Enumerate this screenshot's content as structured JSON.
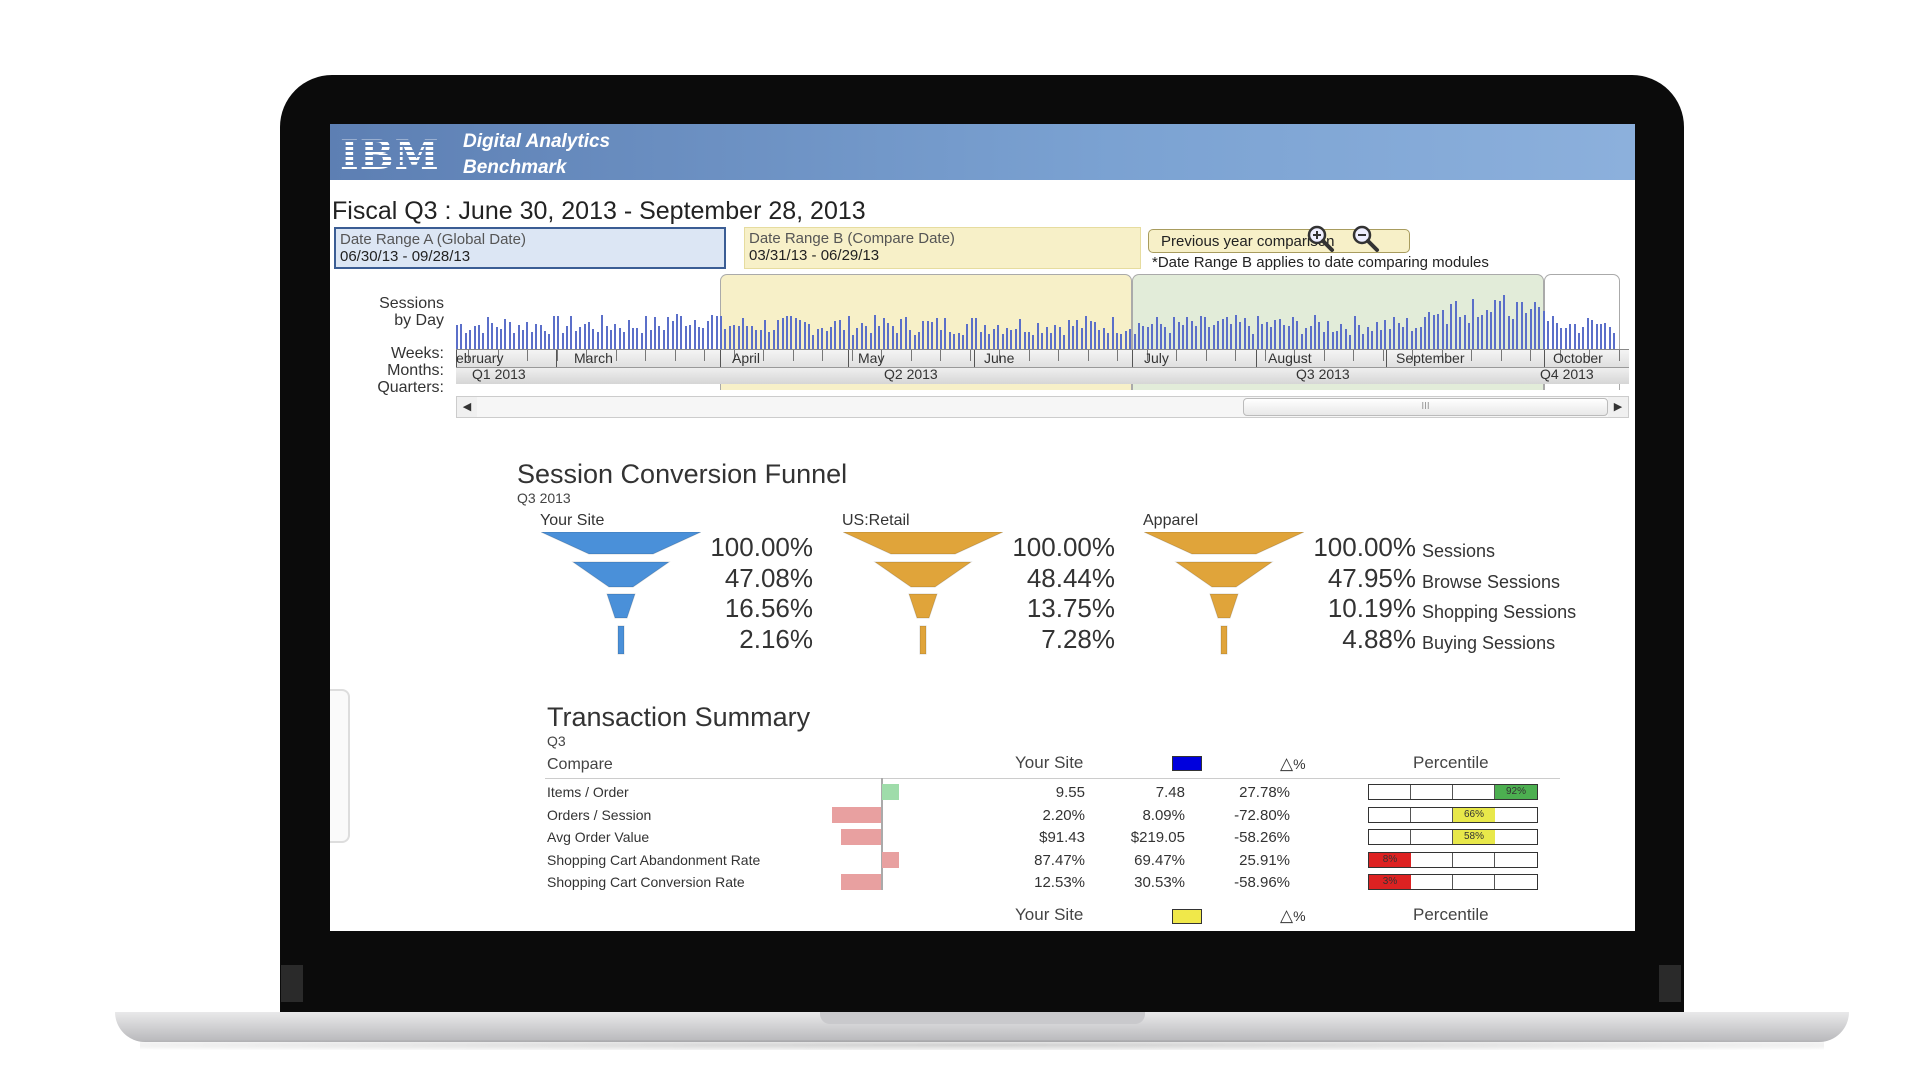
{
  "header": {
    "logo": "IBM",
    "app_line1": "Digital Analytics",
    "app_line2": "Benchmark"
  },
  "period_title": "Fiscal Q3 : June 30, 2013 - September 28, 2013",
  "date_range_a": {
    "label": "Date Range A (Global Date)",
    "value": "06/30/13 - 09/28/13"
  },
  "date_range_b": {
    "label": "Date Range B (Compare Date)",
    "value": "03/31/13 - 06/29/13"
  },
  "compare_button": "Previous year comparison",
  "compare_note": "*Date Range B applies to date comparing modules",
  "zoom": {
    "in_icon": "zoom-in-icon",
    "out_icon": "zoom-out-icon"
  },
  "timeline": {
    "labels": {
      "sessions": "Sessions",
      "by_day": "by Day",
      "weeks": "Weeks:",
      "months": "Months:",
      "quarters": "Quarters:"
    },
    "months": [
      "ebruary",
      "March",
      "April",
      "May",
      "June",
      "July",
      "August",
      "September",
      "October"
    ],
    "quarters": [
      "Q1 2013",
      "Q2 2013",
      "Q3 2013",
      "Q4 2013"
    ],
    "scroll_grip": "III"
  },
  "funnel": {
    "title": "Session Conversion Funnel",
    "subtitle": "Q3 2013",
    "series": [
      {
        "name": "Your Site",
        "values": [
          "100.00%",
          "47.08%",
          "16.56%",
          "2.16%"
        ],
        "color": "#4a90d9"
      },
      {
        "name": "US:Retail",
        "values": [
          "100.00%",
          "48.44%",
          "13.75%",
          "7.28%"
        ],
        "color": "#e0a43a"
      },
      {
        "name": "Apparel",
        "values": [
          "100.00%",
          "47.95%",
          "10.19%",
          "4.88%"
        ],
        "color": "#e0a43a"
      }
    ],
    "stages": [
      "Sessions",
      "Browse Sessions",
      "Shopping Sessions",
      "Buying Sessions"
    ]
  },
  "transactions": {
    "title": "Transaction Summary",
    "subtitle": "Q3",
    "headers": {
      "compare": "Compare",
      "your_site": "Your Site",
      "delta": "%",
      "percentile": "Percentile"
    },
    "compare_swatch_color": "#0000dd",
    "rows": [
      {
        "label": "Items / Order",
        "your_site": "9.55",
        "compare": "7.48",
        "delta": "27.78%",
        "percentile": "92%",
        "pct_value": 0.92,
        "pct_color": "#4caf50",
        "bar_dir": "pos",
        "bar_mag": 0.3
      },
      {
        "label": "Orders / Session",
        "your_site": "2.20%",
        "compare": "8.09%",
        "delta": "-72.80%",
        "percentile": "66%",
        "pct_value": 0.66,
        "pct_color": "#e8e84a",
        "bar_dir": "neg",
        "bar_mag": 0.9
      },
      {
        "label": "Avg Order Value",
        "your_site": "$91.43",
        "compare": "$219.05",
        "delta": "-58.26%",
        "percentile": "58%",
        "pct_value": 0.58,
        "pct_color": "#e8e84a",
        "bar_dir": "neg",
        "bar_mag": 0.72
      },
      {
        "label": "Shopping Cart Abandonment Rate",
        "your_site": "87.47%",
        "compare": "69.47%",
        "delta": "25.91%",
        "percentile": "8%",
        "pct_value": 0.08,
        "pct_color": "#dd2222",
        "bar_dir": "pos_red",
        "bar_mag": 0.3
      },
      {
        "label": "Shopping Cart Conversion Rate",
        "your_site": "12.53%",
        "compare": "30.53%",
        "delta": "-58.96%",
        "percentile": "3%",
        "pct_value": 0.03,
        "pct_color": "#dd2222",
        "bar_dir": "neg",
        "bar_mag": 0.72
      }
    ],
    "footer": {
      "your_site": "Your Site",
      "delta": "%",
      "percentile": "Percentile",
      "swatch_color": "#f0e84a"
    }
  }
}
